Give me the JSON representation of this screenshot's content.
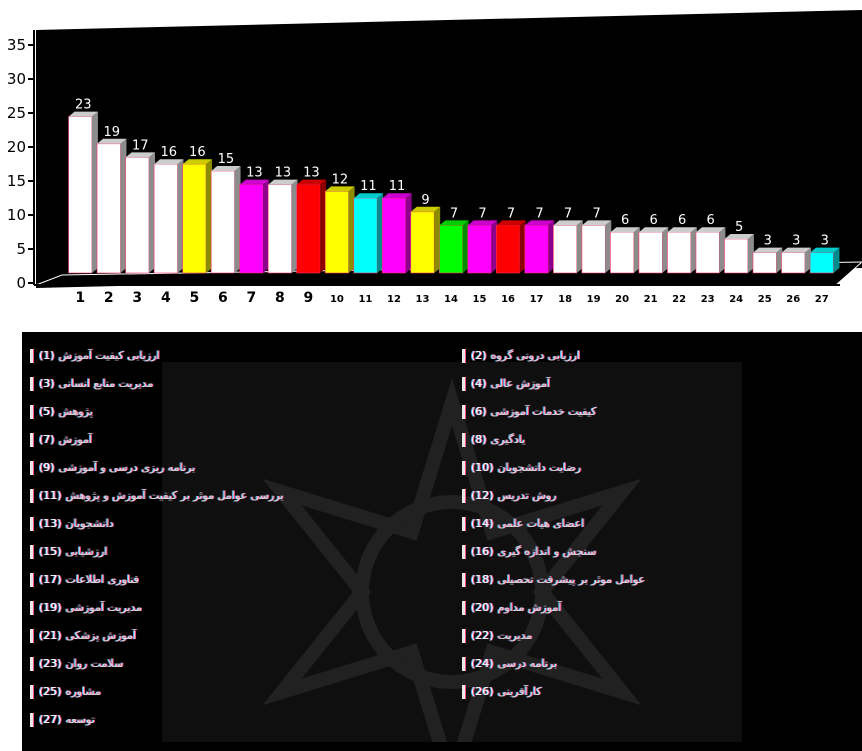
{
  "chart_data": {
    "type": "bar",
    "categories": [
      "1",
      "2",
      "3",
      "4",
      "5",
      "6",
      "7",
      "8",
      "9",
      "10",
      "11",
      "12",
      "13",
      "14",
      "15",
      "16",
      "17",
      "18",
      "19",
      "20",
      "21",
      "22",
      "23",
      "24",
      "25",
      "26",
      "27"
    ],
    "values": [
      23,
      19,
      17,
      16,
      16,
      15,
      13,
      13,
      13,
      12,
      11,
      11,
      9,
      7,
      7,
      7,
      7,
      7,
      7,
      6,
      6,
      6,
      6,
      5,
      3,
      3,
      3
    ],
    "value_labels": [
      "23",
      "19",
      "17",
      "16",
      "16",
      "15",
      "13",
      "13",
      "13",
      "12",
      "11",
      "11",
      "9",
      "7",
      "7",
      "7",
      "7",
      "7",
      "7",
      "6",
      "6",
      "6",
      "6",
      "5",
      "3",
      "3",
      "3"
    ],
    "colors": [
      "#ffffff",
      "#ffffff",
      "#ffffff",
      "#ffffff",
      "#ffff00",
      "#ffffff",
      "#ff00ff",
      "#ffffff",
      "#ff0000",
      "#ffff00",
      "#00ffff",
      "#ff00ff",
      "#ffff00",
      "#00ff00",
      "#ff00ff",
      "#ff0000",
      "#ff00ff",
      "#ffffff",
      "#ffffff",
      "#ffffff",
      "#ffffff",
      "#ffffff",
      "#ffffff",
      "#ffffff",
      "#ffffff",
      "#ffffff",
      "#00ffff"
    ],
    "ylim": [
      0,
      35
    ],
    "yticks": [
      0,
      5,
      10,
      15,
      20,
      25,
      30,
      35
    ],
    "grid": false,
    "legend": "bottom"
  },
  "legend": {
    "left": [
      {
        "num": "(1)",
        "text": "ارزیابی کیفیت آموزش"
      },
      {
        "num": "(3)",
        "text": "مدیریت منابع انسانی"
      },
      {
        "num": "(5)",
        "text": "پژوهش"
      },
      {
        "num": "(7)",
        "text": "آموزش"
      },
      {
        "num": "(9)",
        "text": "برنامه ریزی درسی و آموزشی"
      },
      {
        "num": "(11)",
        "text": "بررسی عوامل موثر بر کیفیت آموزش و پژوهش"
      },
      {
        "num": "(13)",
        "text": "دانشجویان"
      },
      {
        "num": "(15)",
        "text": "ارزشیابی"
      },
      {
        "num": "(17)",
        "text": "فناوری اطلاعات"
      },
      {
        "num": "(19)",
        "text": "مدیریت آموزشی"
      },
      {
        "num": "(21)",
        "text": "آموزش پزشکی"
      },
      {
        "num": "(23)",
        "text": "سلامت روان"
      },
      {
        "num": "(25)",
        "text": "مشاوره"
      },
      {
        "num": "(27)",
        "text": "توسعه"
      }
    ],
    "right": [
      {
        "num": "(2)",
        "text": "ارزیابی درونی گروه"
      },
      {
        "num": "(4)",
        "text": "آموزش عالی"
      },
      {
        "num": "(6)",
        "text": "کیفیت خدمات آموزشی"
      },
      {
        "num": "(8)",
        "text": "یادگیری"
      },
      {
        "num": "(10)",
        "text": "رضایت دانشجویان"
      },
      {
        "num": "(12)",
        "text": "روش تدریس"
      },
      {
        "num": "(14)",
        "text": "اعضای هیات علمی"
      },
      {
        "num": "(16)",
        "text": "سنجش و اندازه گیری"
      },
      {
        "num": "(18)",
        "text": "عوامل موثر بر پیشرفت تحصیلی"
      },
      {
        "num": "(20)",
        "text": "آموزش مداوم"
      },
      {
        "num": "(22)",
        "text": "مدیریت"
      },
      {
        "num": "(24)",
        "text": "برنامه درسی"
      },
      {
        "num": "(26)",
        "text": "کارآفرینی"
      }
    ]
  }
}
